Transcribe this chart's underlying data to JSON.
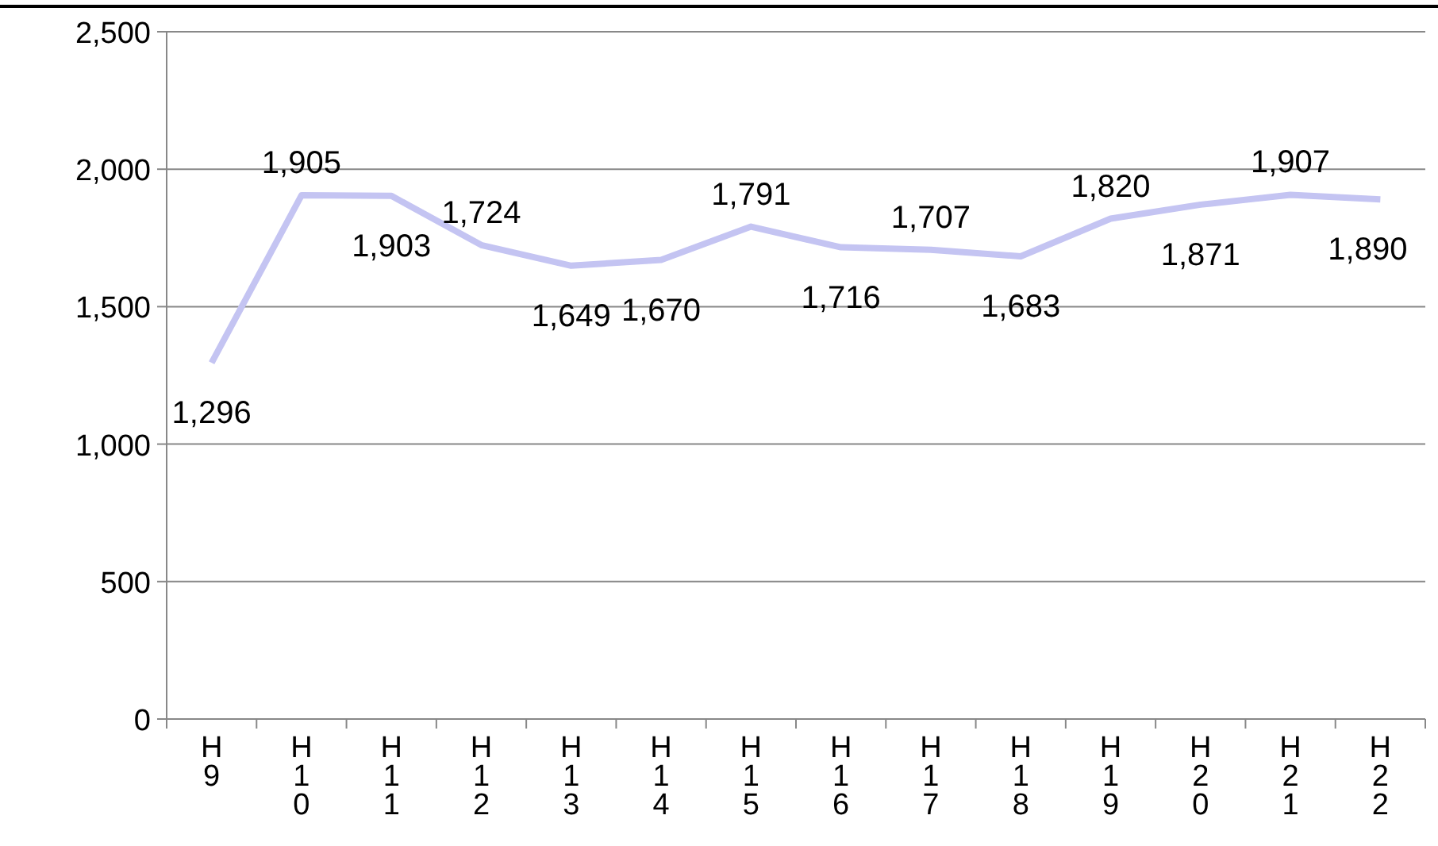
{
  "chart_data": {
    "type": "line",
    "categories": [
      "H9",
      "H10",
      "H11",
      "H12",
      "H13",
      "H14",
      "H15",
      "H16",
      "H17",
      "H18",
      "H19",
      "H20",
      "H21",
      "H22"
    ],
    "series": [
      {
        "color": "#c4c4f2",
        "values": [
          1296,
          1905,
          1903,
          1724,
          1649,
          1670,
          1791,
          1716,
          1707,
          1683,
          1820,
          1871,
          1907,
          1890
        ],
        "value_labels": [
          "1,296",
          "1,905",
          "1,903",
          "1,724",
          "1,649",
          "1,670",
          "1,791",
          "1,716",
          "1,707",
          "1,683",
          "1,820",
          "1,871",
          "1,907",
          "1,890"
        ]
      }
    ],
    "ylim": [
      0,
      2500
    ],
    "yticks": [
      {
        "value": 0,
        "label": "0"
      },
      {
        "value": 500,
        "label": "500"
      },
      {
        "value": 1000,
        "label": "1,000"
      },
      {
        "value": 1500,
        "label": "1,500"
      },
      {
        "value": 2000,
        "label": "2,000"
      },
      {
        "value": 2500,
        "label": "2,500"
      }
    ],
    "grid": "y",
    "marker": "none",
    "line_style": "solid"
  }
}
